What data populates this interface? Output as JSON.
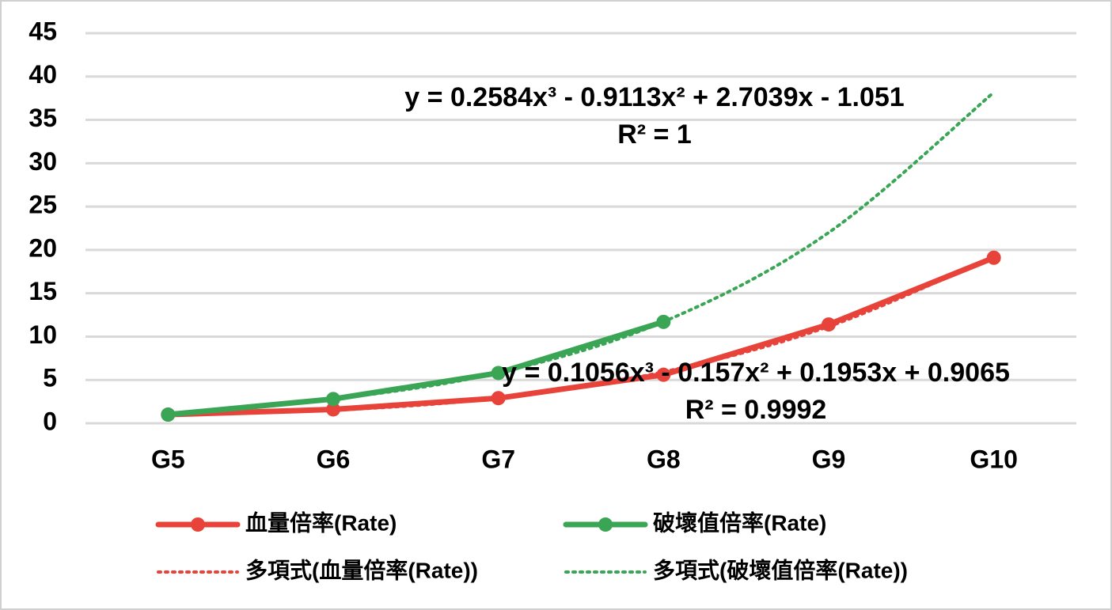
{
  "chart_data": {
    "type": "line",
    "categories": [
      "G5",
      "G6",
      "G7",
      "G8",
      "G9",
      "G10"
    ],
    "series": [
      {
        "name": "血量倍率(Rate)",
        "color": "#e8433a",
        "values": [
          1,
          1.6,
          2.9,
          5.6,
          11.4,
          19.1
        ]
      },
      {
        "name": "破壞值倍率(Rate)",
        "color": "#3aa655",
        "values": [
          1,
          2.8,
          5.8,
          11.7,
          null,
          null
        ]
      },
      {
        "name": "多項式(血量倍率(Rate))",
        "color": "#e8433a",
        "dotted": true,
        "values": [
          1.05,
          1.51,
          2.93,
          5.93,
          11.16,
          19.24
        ]
      },
      {
        "name": "多項式(破壞值倍率(Rate))",
        "color": "#3aa655",
        "dotted": true,
        "values": [
          1.0,
          2.78,
          5.84,
          11.72,
          22.0,
          38.18
        ]
      }
    ],
    "annotations": [
      {
        "text": "y = 0.2584x³ - 0.9113x² + 2.7039x - 1.051",
        "r2": "R² = 1"
      },
      {
        "text": "y = 0.1056x³ - 0.157x² + 0.1953x + 0.9065",
        "r2": "R² = 0.9992"
      }
    ],
    "ylim": [
      0,
      45
    ],
    "yticks": [
      0,
      5,
      10,
      15,
      20,
      25,
      30,
      35,
      40,
      45
    ],
    "grid": true,
    "legend": "bottom"
  }
}
